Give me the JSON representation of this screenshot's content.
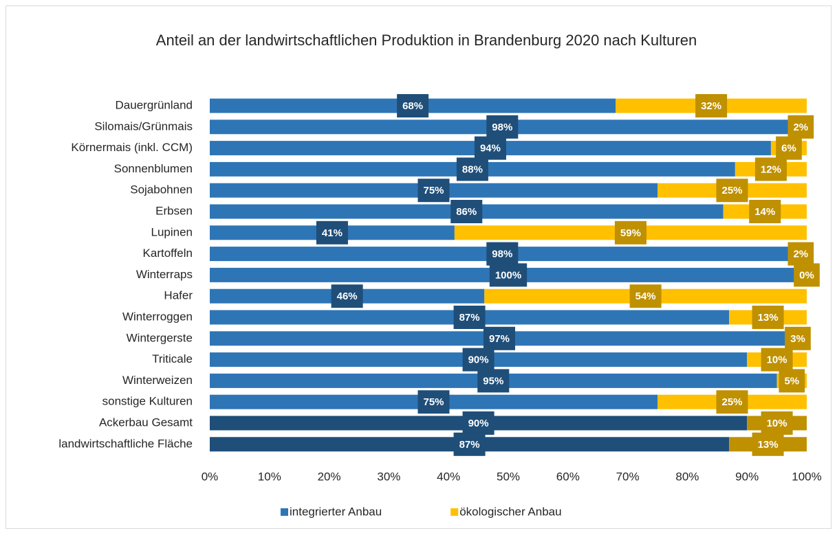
{
  "chart_data": {
    "type": "stacked_barh",
    "title": "Anteil an der landwirtschaftlichen Produktion in Brandenburg 2020 nach Kulturen",
    "categories": [
      "Dauergrünland",
      "Silomais/Grünmais",
      "Körnermais (inkl. CCM)",
      "Sonnenblumen",
      "Sojabohnen",
      "Erbsen",
      "Lupinen",
      "Kartoffeln",
      "Winterraps",
      "Hafer",
      "Winterroggen",
      "Wintergerste",
      "Triticale",
      "Winterweizen",
      "sonstige Kulturen",
      "Ackerbau Gesamt",
      "landwirtschaftliche Fläche"
    ],
    "series": [
      {
        "name": "integrierter Anbau",
        "color": "#2e75b6",
        "label_box_color": "#1f4e79",
        "point_colors": [
          "#2e75b6",
          "#2e75b6",
          "#2e75b6",
          "#2e75b6",
          "#2e75b6",
          "#2e75b6",
          "#2e75b6",
          "#2e75b6",
          "#2e75b6",
          "#2e75b6",
          "#2e75b6",
          "#2e75b6",
          "#2e75b6",
          "#2e75b6",
          "#2e75b6",
          "#1f4e79",
          "#1f4e79"
        ],
        "values": [
          68,
          98,
          94,
          88,
          75,
          86,
          41,
          98,
          100,
          46,
          87,
          97,
          90,
          95,
          75,
          90,
          87
        ],
        "value_labels": [
          "68%",
          "98%",
          "94%",
          "88%",
          "75%",
          "86%",
          "41%",
          "98%",
          "100%",
          "46%",
          "87%",
          "97%",
          "90%",
          "95%",
          "75%",
          "90%",
          "87%"
        ]
      },
      {
        "name": "ökologischer Anbau",
        "color": "#ffc000",
        "label_box_color": "#bf9000",
        "point_colors": [
          "#ffc000",
          "#ffc000",
          "#ffc000",
          "#ffc000",
          "#ffc000",
          "#ffc000",
          "#ffc000",
          "#ffc000",
          "#ffc000",
          "#ffc000",
          "#ffc000",
          "#ffc000",
          "#ffc000",
          "#ffc000",
          "#ffc000",
          "#bf9000",
          "#bf9000"
        ],
        "values": [
          32,
          2,
          6,
          12,
          25,
          14,
          59,
          2,
          0,
          54,
          13,
          3,
          10,
          5,
          25,
          10,
          13
        ],
        "value_labels": [
          "32%",
          "2%",
          "6%",
          "12%",
          "25%",
          "14%",
          "59%",
          "2%",
          "0%",
          "54%",
          "13%",
          "3%",
          "10%",
          "5%",
          "25%",
          "10%",
          "13%"
        ]
      }
    ],
    "xlim": [
      0,
      100
    ],
    "xticks": [
      {
        "value": 0,
        "label": "0%"
      },
      {
        "value": 10,
        "label": "10%"
      },
      {
        "value": 20,
        "label": "20%"
      },
      {
        "value": 30,
        "label": "30%"
      },
      {
        "value": 40,
        "label": "40%"
      },
      {
        "value": 50,
        "label": "50%"
      },
      {
        "value": 60,
        "label": "60%"
      },
      {
        "value": 70,
        "label": "70%"
      },
      {
        "value": 80,
        "label": "80%"
      },
      {
        "value": 90,
        "label": "90%"
      },
      {
        "value": 100,
        "label": "100%"
      }
    ],
    "grid": false,
    "legend": "bottom"
  }
}
